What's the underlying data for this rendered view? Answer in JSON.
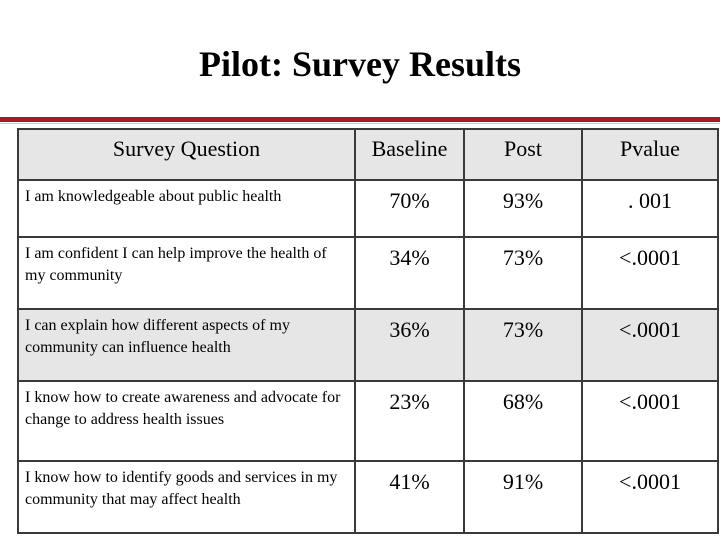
{
  "title": "Pilot: Survey Results",
  "table": {
    "headers": [
      "Survey Question",
      "Baseline",
      "Post",
      "Pvalue"
    ],
    "rows": [
      {
        "question": "I am knowledgeable about public health",
        "baseline": "70%",
        "post": "93%",
        "pvalue": ". 001"
      },
      {
        "question": "I am confident I can help improve the health of my community",
        "baseline": "34%",
        "post": "73%",
        "pvalue": "<.0001"
      },
      {
        "question": "I can explain how different aspects of my community can influence health",
        "baseline": "36%",
        "post": "73%",
        "pvalue": "<.0001"
      },
      {
        "question": "I know how to create awareness and advocate for change to address health issues",
        "baseline": "23%",
        "post": "68%",
        "pvalue": "<.0001"
      },
      {
        "question": "I know how to identify goods and services in my community that may affect health",
        "baseline": "41%",
        "post": "91%",
        "pvalue": "<.0001"
      }
    ]
  },
  "colors": {
    "accent_rule": "#a8182a",
    "shaded_row": "#e6e6e6",
    "border": "#3a3a3a"
  }
}
